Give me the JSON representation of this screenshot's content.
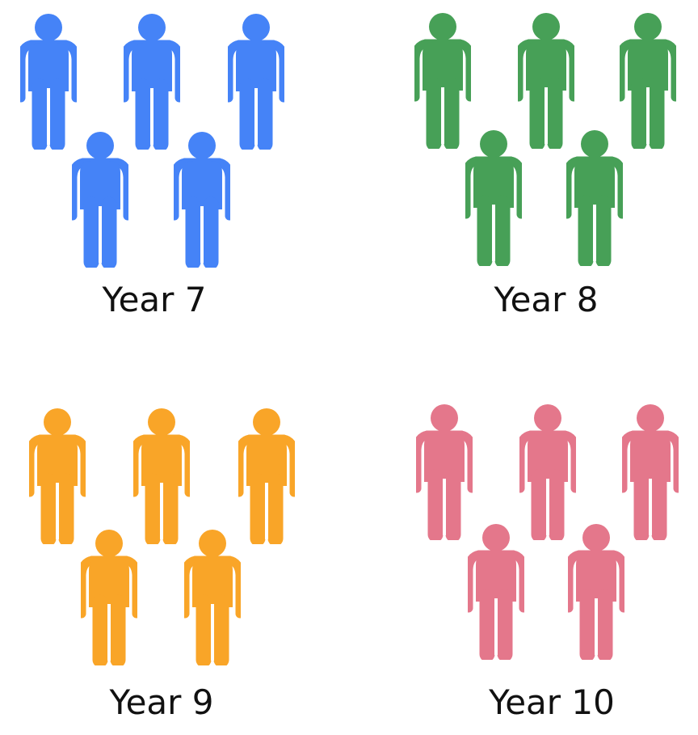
{
  "groups": [
    {
      "label": "Year 7",
      "color": "#4583F7",
      "count": 5,
      "icon": "person-icon"
    },
    {
      "label": "Year 8",
      "color": "#47A057",
      "count": 5,
      "icon": "person-icon"
    },
    {
      "label": "Year 9",
      "color": "#F9A528",
      "count": 5,
      "icon": "person-icon"
    },
    {
      "label": "Year 10",
      "color": "#E4778B",
      "count": 5,
      "icon": "person-icon"
    }
  ]
}
